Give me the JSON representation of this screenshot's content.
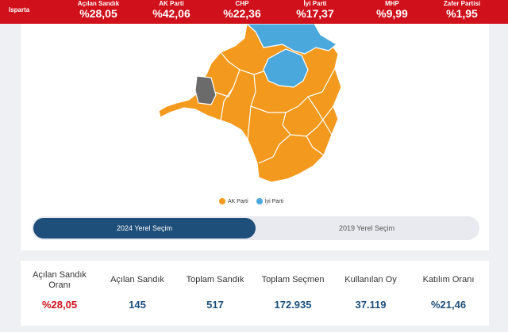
{
  "topbar": {
    "city": "Isparta",
    "stats": [
      {
        "label": "Açılan Sandık",
        "value": "%28,05"
      },
      {
        "label": "AK Parti",
        "value": "%42,06"
      },
      {
        "label": "CHP",
        "value": "%22,36"
      },
      {
        "label": "İyi Parti",
        "value": "%17,37"
      },
      {
        "label": "MHP",
        "value": "%9,99"
      },
      {
        "label": "Zafer Partisi",
        "value": "%1,95"
      }
    ]
  },
  "map": {
    "colors": {
      "ak_parti": "#f39a1e",
      "iyi_parti": "#4aa8dc",
      "other": "#6b6b6b",
      "border": "#ffffff"
    },
    "legend": [
      {
        "label": "AK Parti",
        "color": "#f39a1e"
      },
      {
        "label": "İyi Parti",
        "color": "#4aa8dc"
      }
    ]
  },
  "toggle": {
    "active": "2024 Yerel Seçim",
    "inactive": "2019 Yerel Seçim",
    "active_color": "#1e4e7a"
  },
  "summary": {
    "items": [
      {
        "label": "Açılan Sandık Oranı",
        "value": "%28,05"
      },
      {
        "label": "Açılan Sandık",
        "value": "145"
      },
      {
        "label": "Toplam Sandık",
        "value": "517"
      },
      {
        "label": "Toplam Seçmen",
        "value": "172.935"
      },
      {
        "label": "Kullanılan Oy",
        "value": "37.119"
      },
      {
        "label": "Katılım Oranı",
        "value": "%21,46"
      }
    ]
  }
}
